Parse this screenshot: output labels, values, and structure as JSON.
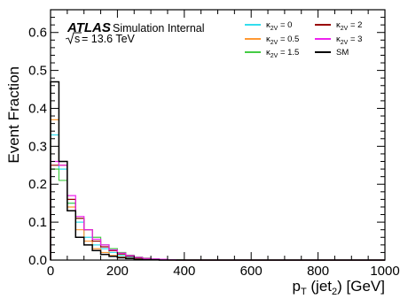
{
  "chart_data": {
    "type": "histogram",
    "xlabel_main": "p",
    "xlabel_sub": "T",
    "xlabel_rest": " (jet",
    "xlabel_sub2": "2",
    "xlabel_unit": ") [GeV]",
    "ylabel": "Event Fraction",
    "xlim": [
      0,
      1000
    ],
    "ylim": [
      0,
      0.66
    ],
    "x_ticks": [
      0,
      200,
      400,
      600,
      800,
      1000
    ],
    "x_tick_labels": [
      "0",
      "200",
      "400",
      "600",
      "800",
      "1000"
    ],
    "y_ticks": [
      0,
      0.1,
      0.2,
      0.3,
      0.4,
      0.5,
      0.6
    ],
    "y_tick_labels": [
      "0.0",
      "0.1",
      "0.2",
      "0.3",
      "0.4",
      "0.5",
      "0.6"
    ],
    "bin_edges": [
      0,
      25,
      50,
      75,
      100,
      125,
      150,
      175,
      200,
      225,
      250,
      275,
      300,
      325,
      350,
      375,
      400
    ],
    "series": [
      {
        "name": "κ2V = 0",
        "kappa": "κ",
        "sub": "2V",
        "rest": " = 0",
        "color": "#33ddee",
        "values": [
          0.33,
          0.24,
          0.15,
          0.1,
          0.06,
          0.04,
          0.03,
          0.02,
          0.012,
          0.008,
          0.005,
          0.003,
          0.002,
          0.001,
          0.001,
          0.0
        ]
      },
      {
        "name": "κ2V = 0.5",
        "kappa": "κ",
        "sub": "2V",
        "rest": " = 0.5",
        "color": "#ff9933",
        "values": [
          0.37,
          0.25,
          0.14,
          0.08,
          0.05,
          0.03,
          0.02,
          0.012,
          0.008,
          0.005,
          0.003,
          0.002,
          0.001,
          0.001,
          0.0,
          0.0
        ]
      },
      {
        "name": "κ2V = 1.5",
        "kappa": "κ",
        "sub": "2V",
        "rest": " = 1.5",
        "color": "#44cc44",
        "values": [
          0.24,
          0.21,
          0.15,
          0.11,
          0.08,
          0.06,
          0.04,
          0.03,
          0.02,
          0.013,
          0.008,
          0.005,
          0.003,
          0.002,
          0.001,
          0.001
        ]
      },
      {
        "name": "κ2V = 2",
        "kappa": "κ",
        "sub": "2V",
        "rest": " = 2",
        "color": "#990000",
        "values": [
          0.25,
          0.25,
          0.16,
          0.11,
          0.08,
          0.05,
          0.035,
          0.025,
          0.016,
          0.01,
          0.006,
          0.004,
          0.002,
          0.001,
          0.001,
          0.0
        ]
      },
      {
        "name": "κ2V = 3",
        "kappa": "κ",
        "sub": "2V",
        "rest": " = 3",
        "color": "#ee22ee",
        "values": [
          0.26,
          0.25,
          0.17,
          0.115,
          0.08,
          0.055,
          0.04,
          0.027,
          0.018,
          0.012,
          0.007,
          0.004,
          0.003,
          0.002,
          0.001,
          0.0
        ]
      },
      {
        "name": "SM",
        "kappa": "",
        "sub": "",
        "rest": "SM",
        "color": "#000000",
        "values": [
          0.47,
          0.26,
          0.13,
          0.06,
          0.04,
          0.025,
          0.015,
          0.01,
          0.006,
          0.004,
          0.002,
          0.001,
          0.001,
          0.0,
          0.0,
          0.0
        ]
      }
    ],
    "legend_placement": "top-right",
    "grid": false
  },
  "labels": {
    "atlas": "ATLAS",
    "subtitle": "Simulation Internal",
    "sqrt_s": "s",
    "energy": " = 13.6 TeV"
  }
}
